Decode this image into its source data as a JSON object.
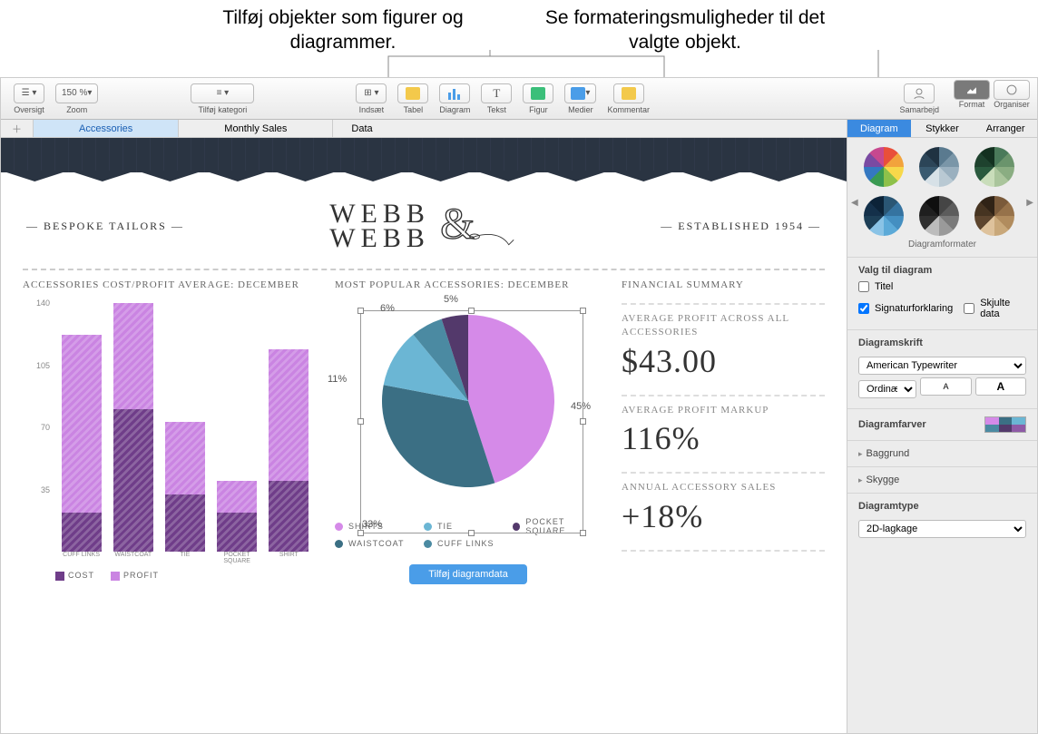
{
  "callouts": {
    "left": "Tilføj objekter som figurer og diagrammer.",
    "right": "Se formateringsmuligheder til det valgte objekt."
  },
  "toolbar": {
    "oversigt": "Oversigt",
    "zoom_value": "150 %",
    "zoom_label": "Zoom",
    "category": "Tilføj kategori",
    "insert": "Indsæt",
    "table": "Tabel",
    "chart": "Diagram",
    "text": "Tekst",
    "shape": "Figur",
    "media": "Medier",
    "comment": "Kommentar",
    "collaborate": "Samarbejd",
    "format": "Format",
    "organise": "Organiser"
  },
  "sheet_tabs": [
    "Accessories",
    "Monthly Sales",
    "Data"
  ],
  "header": {
    "left": "— BESPOKE TAILORS —",
    "logo_line1": "WEBB",
    "logo_line2": "WEBB",
    "right": "— ESTABLISHED 1954 —"
  },
  "bar_chart": {
    "title": "ACCESSORIES COST/PROFIT AVERAGE: DECEMBER",
    "ymax": 140,
    "yticks": [
      140,
      105,
      70,
      35
    ],
    "categories": [
      "CUFF LINKS",
      "WAISTCOAT",
      "TIE",
      "POCKET SQUARE",
      "SHIRT"
    ],
    "cost": [
      22,
      80,
      32,
      22,
      40
    ],
    "profit": [
      100,
      60,
      41,
      18,
      74
    ],
    "cost_color": "#6f3d89",
    "profit_color": "#ca84e2",
    "legend": {
      "cost": "COST",
      "profit": "PROFIT"
    }
  },
  "pie_chart": {
    "title": "MOST POPULAR ACCESSORIES: DECEMBER",
    "slices": [
      {
        "label": "SHIRTS",
        "value": 45,
        "color": "#d58ae8"
      },
      {
        "label": "WAISTCOAT",
        "value": 33,
        "color": "#3b6f84"
      },
      {
        "label": "TIE",
        "value": 11,
        "color": "#6bb6d4"
      },
      {
        "label": "CUFF LINKS",
        "value": 6,
        "color": "#4b8aa2"
      },
      {
        "label": "POCKET SQUARE",
        "value": 5,
        "color": "#53396b"
      }
    ],
    "slice_labels": [
      "45%",
      "33%",
      "11%",
      "6%",
      "5%"
    ],
    "legend_order": [
      "SHIRTS",
      "TIE",
      "POCKET SQUARE",
      "WAISTCOAT",
      "CUFF LINKS"
    ],
    "add_data_button": "Tilføj diagramdata"
  },
  "financial": {
    "title": "FINANCIAL SUMMARY",
    "items": [
      {
        "label": "AVERAGE PROFIT ACROSS ALL ACCESSORIES",
        "value": "$43.00"
      },
      {
        "label": "AVERAGE PROFIT MARKUP",
        "value": "116%"
      },
      {
        "label": "ANNUAL ACCESSORY SALES",
        "value": "+18%"
      }
    ]
  },
  "inspector": {
    "tabs": [
      "Diagram",
      "Stykker",
      "Arranger"
    ],
    "styles_label": "Diagramformater",
    "style_pies": [
      [
        "#e94f3a",
        "#f2a33c",
        "#f7d84a",
        "#8ec14a",
        "#3a9a52",
        "#3478c1",
        "#7a4aa2",
        "#c7488f"
      ],
      [
        "#5a7a8f",
        "#7a96a8",
        "#9ab0bf",
        "#b9c9d3",
        "#d7e1e7",
        "#3a5a70",
        "#2c4558",
        "#1f3242"
      ],
      [
        "#4a7a5a",
        "#6a946c",
        "#8aad82",
        "#aac59c",
        "#c9ddba",
        "#2a5a3e",
        "#1e422e",
        "#133120"
      ],
      [
        "#2a5674",
        "#3573a0",
        "#448fc1",
        "#5caad8",
        "#8ac3e6",
        "#1d3f57",
        "#14304a",
        "#0c2338"
      ],
      [
        "#454545",
        "#5c5c5c",
        "#7a7a7a",
        "#9a9a9a",
        "#bcbcbc",
        "#2f2f2f",
        "#1f1f1f",
        "#0f0f0f"
      ],
      [
        "#7a5a3a",
        "#96724a",
        "#b18c5e",
        "#c9a87a",
        "#dec29c",
        "#5d452e",
        "#463421",
        "#302316"
      ]
    ],
    "options_heading": "Valg til diagram",
    "title_chk": "Titel",
    "legend_chk": "Signaturforklaring",
    "hidden_chk": "Skjulte data",
    "font_heading": "Diagramskrift",
    "font_family": "American Typewriter",
    "font_weight": "Ordinær",
    "size_small": "A",
    "size_large": "A",
    "colors_heading": "Diagramfarver",
    "color_cells": [
      "#d58ae8",
      "#3b6f84",
      "#6bb6d4",
      "#4b8aa2",
      "#53396b",
      "#8e5aa6"
    ],
    "background_heading": "Baggrund",
    "shadow_heading": "Skygge",
    "type_heading": "Diagramtype",
    "type_value": "2D-lagkage"
  }
}
